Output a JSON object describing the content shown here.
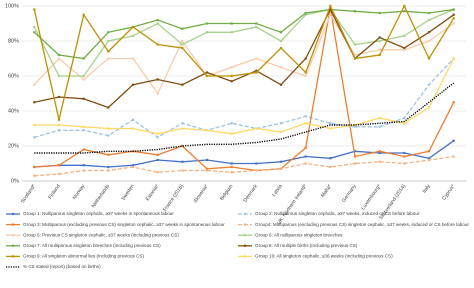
{
  "chart_data": {
    "type": "line",
    "categories": [
      "Scotland*",
      "Finland",
      "Norway",
      "Netherlands",
      "Sweden",
      "Estonia*",
      "France (2016)",
      "Slovenia*",
      "Belgium",
      "Denmark",
      "Latvia",
      "UK: Northern Ireland*",
      "Malta*",
      "Germany",
      "Luxembourg*",
      "Switzerland (2014)",
      "Italy",
      "Cyprus*"
    ],
    "ylim": [
      0,
      100
    ],
    "yticks": [
      {
        "value": 0,
        "label": "0%"
      },
      {
        "value": 20,
        "label": "20%"
      },
      {
        "value": 40,
        "label": "40%"
      },
      {
        "value": 60,
        "label": "60%"
      },
      {
        "value": 80,
        "label": "80%"
      },
      {
        "value": 100,
        "label": "100%"
      }
    ],
    "grid": true,
    "series": [
      {
        "name": "Group 1: Nulliparous singleton cephalic, ≥37 weeks in spontaneous labour",
        "color": "#4472c4",
        "style": "solid",
        "values": [
          8,
          9,
          9,
          8,
          9,
          12,
          11,
          12,
          10,
          10,
          11,
          14,
          13,
          17,
          16,
          16,
          13,
          23
        ]
      },
      {
        "name": "Group 2: Nulliparous singleton cephalic, ≥37 weeks, induced or CS before labour",
        "color": "#9dc3e6",
        "style": "dashed",
        "values": [
          25,
          29,
          29,
          26,
          35,
          25,
          33,
          29,
          33,
          30,
          33,
          37,
          33,
          31,
          31,
          36,
          55,
          70
        ]
      },
      {
        "name": "Group 3: Multiparous (excluding previous CS) singleton cephalic, ≥37 weeks in spontaneous labour",
        "color": "#ed7d31",
        "style": "solid",
        "values": [
          8,
          9,
          18,
          15,
          17,
          15,
          20,
          7,
          8,
          6,
          7,
          19,
          99,
          14,
          17,
          14,
          17,
          45
        ]
      },
      {
        "name": "Group4: Multiparous (excluding previous CS) singleton cephalic, ≥37 weeks, induced or CS before labour",
        "color": "#f4b183",
        "style": "dashed",
        "values": [
          3,
          4,
          6,
          6,
          8,
          5,
          6,
          6,
          5,
          6,
          7,
          10,
          8,
          10,
          11,
          10,
          12,
          14
        ]
      },
      {
        "name": "Group 5: Previous CS singleton cephalic, ≥37 weeks (including previous CS)",
        "color": "#f8cbad",
        "style": "solid",
        "values": [
          55,
          70,
          58,
          70,
          70,
          50,
          80,
          60,
          65,
          70,
          65,
          60,
          95,
          72,
          75,
          75,
          80,
          90
        ]
      },
      {
        "name": "Group 6: All nulliparous singleton breeches",
        "color": "#a9d18e",
        "style": "solid",
        "values": [
          88,
          60,
          60,
          80,
          83,
          90,
          78,
          85,
          85,
          88,
          80,
          95,
          98,
          78,
          80,
          83,
          92,
          98
        ]
      },
      {
        "name": "Group 7: All multiparous singleton breeches (including previous CS)",
        "color": "#70ad47",
        "style": "solid",
        "values": [
          85,
          72,
          70,
          85,
          88,
          92,
          87,
          90,
          90,
          90,
          85,
          96,
          98,
          97,
          96,
          97,
          96,
          98
        ]
      },
      {
        "name": "Group 8: All multiple births (including previous CS)",
        "color": "#7f4f12",
        "style": "solid",
        "values": [
          45,
          48,
          47,
          42,
          55,
          58,
          55,
          62,
          57,
          63,
          55,
          70,
          98,
          70,
          82,
          76,
          85,
          95
        ]
      },
      {
        "name": "Group 9: All singleton abnormal lies (including previous CS)",
        "color": "#bf9000",
        "style": "solid",
        "values": [
          98,
          35,
          95,
          74,
          88,
          78,
          76,
          60,
          60,
          62,
          76,
          62,
          100,
          70,
          72,
          100,
          70,
          93
        ]
      },
      {
        "name": "Group 10: All singleton cephalic, ≤36 weeks (including previous CS)",
        "color": "#ffd966",
        "style": "solid",
        "values": [
          32,
          32,
          31,
          30,
          30,
          27,
          30,
          29,
          27,
          30,
          28,
          33,
          30,
          32,
          36,
          33,
          42,
          70
        ]
      },
      {
        "name": "% CS stated (report) (based on births)",
        "color": "#000000",
        "style": "dotted",
        "values": [
          16,
          16,
          16,
          17,
          17,
          18,
          20,
          21,
          21,
          22,
          24,
          28,
          32,
          32,
          33,
          34,
          45,
          56
        ]
      }
    ]
  }
}
